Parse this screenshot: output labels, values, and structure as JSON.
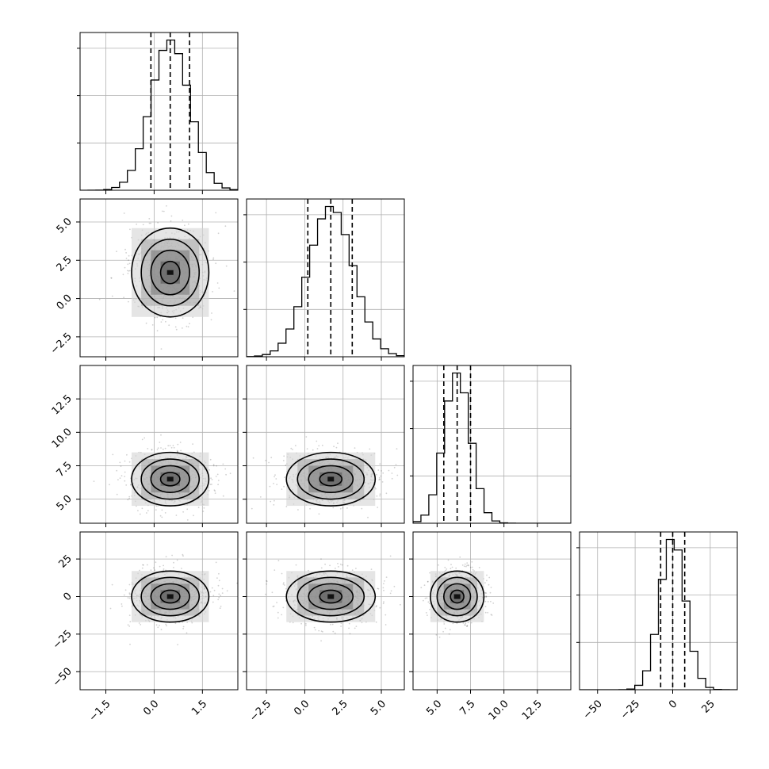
{
  "chart_data": {
    "type": "corner",
    "variables": [
      {
        "ticks": [
          -1.5,
          0.0,
          1.5
        ],
        "tick_labels": [
          "−1.5",
          "0.0",
          "1.5"
        ],
        "lim": [
          -2.3,
          2.6
        ],
        "quantiles": [
          -0.1,
          0.5,
          1.1
        ],
        "mean": 0.5,
        "sd": 0.6
      },
      {
        "ticks": [
          -2.5,
          0.0,
          2.5,
          5.0
        ],
        "tick_labels": [
          "−2.5",
          "0.0",
          "2.5",
          "5.0"
        ],
        "lim": [
          -3.8,
          6.5
        ],
        "quantiles": [
          0.2,
          1.7,
          3.1
        ],
        "mean": 1.7,
        "sd": 1.45
      },
      {
        "ticks": [
          5.0,
          7.5,
          10.0,
          12.5
        ],
        "tick_labels": [
          "5.0",
          "7.5",
          "10.0",
          "12.5"
        ],
        "lim": [
          3.2,
          15.0
        ],
        "quantiles": [
          5.5,
          6.5,
          7.5
        ],
        "mean": 6.5,
        "sd": 1.0
      },
      {
        "ticks": [
          -50,
          -25,
          0,
          25
        ],
        "tick_labels": [
          "−50",
          "−25",
          "0",
          "25"
        ],
        "lim": [
          -62,
          43
        ],
        "quantiles": [
          -8,
          0,
          8
        ],
        "mean": 0,
        "sd": 8.5
      }
    ],
    "xlabel": "",
    "ylabel": "",
    "title": "",
    "grid": true,
    "quantile_line_style": "dashed",
    "histogram_bins": 20,
    "sample_color": "#000000"
  }
}
